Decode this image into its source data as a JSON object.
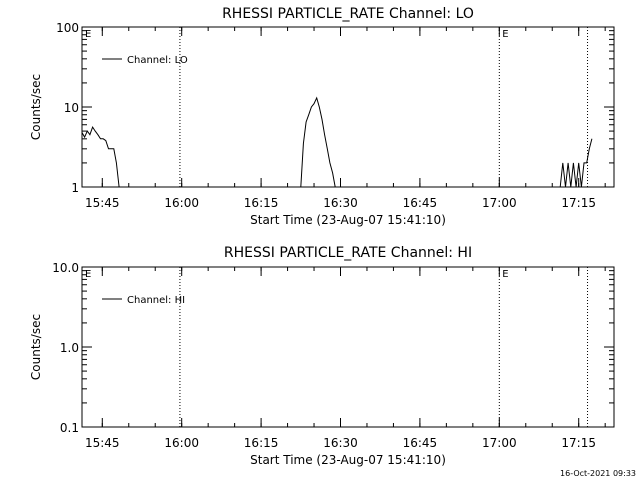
{
  "footer": {
    "timestamp": "16-Oct-2021 09:33"
  },
  "chart_data": [
    {
      "type": "line",
      "title": "RHESSI PARTICLE_RATE Channel: LO",
      "xlabel": "Start Time (23-Aug-07 15:41:10)",
      "ylabel": "Counts/sec",
      "yscale": "log",
      "ylim": [
        1,
        100
      ],
      "yticks": [
        "1",
        "10",
        "100"
      ],
      "xlim": [
        "15:41:10",
        "17:21:40"
      ],
      "xticks": [
        "15:45",
        "16:00",
        "16:15",
        "16:30",
        "16:45",
        "17:00",
        "17:15"
      ],
      "legend": {
        "label": "Channel: LO",
        "position": "top-left"
      },
      "markers": [
        {
          "label": "E",
          "time": "15:41:10",
          "style": "none"
        },
        {
          "time": "15:59:40",
          "style": "dotted"
        },
        {
          "label": "E",
          "time": "17:00:00",
          "style": "dotted"
        },
        {
          "time": "17:16:40",
          "style": "dotted"
        }
      ],
      "series": [
        {
          "name": "Channel: LO",
          "segments": [
            {
              "x": [
                "15:41:10",
                "15:41:40",
                "15:42:10",
                "15:42:40",
                "15:43:10",
                "15:43:40",
                "15:44:10",
                "15:44:40",
                "15:45:10",
                "15:45:40",
                "15:46:10",
                "15:46:40",
                "15:47:10",
                "15:47:40",
                "15:48:10"
              ],
              "y": [
                4.8,
                4.2,
                5.0,
                4.5,
                5.6,
                5.0,
                4.5,
                4.0,
                4.0,
                3.8,
                3.0,
                3.0,
                3.0,
                2.0,
                1.0
              ]
            },
            {
              "x": [
                "16:22:30",
                "16:23:00",
                "16:23:30",
                "16:24:00",
                "16:24:30",
                "16:25:00",
                "16:25:30",
                "16:26:00",
                "16:26:30",
                "16:27:00",
                "16:27:30",
                "16:28:00",
                "16:28:30",
                "16:29:00"
              ],
              "y": [
                1.0,
                3.5,
                6.5,
                8.0,
                10.0,
                11.0,
                13.0,
                10.0,
                7.0,
                4.5,
                3.0,
                2.0,
                1.5,
                1.0
              ]
            },
            {
              "x": [
                "17:11:30",
                "17:12:00",
                "17:12:30",
                "17:13:00",
                "17:13:30",
                "17:14:00",
                "17:14:30",
                "17:15:00",
                "17:15:30",
                "17:16:00",
                "17:16:30",
                "17:17:00",
                "17:17:30"
              ],
              "y": [
                1.0,
                2.0,
                1.0,
                2.0,
                1.0,
                2.0,
                1.0,
                2.0,
                1.0,
                2.0,
                2.0,
                3.0,
                4.0
              ]
            }
          ]
        }
      ]
    },
    {
      "type": "line",
      "title": "RHESSI PARTICLE_RATE Channel: HI",
      "xlabel": "Start Time (23-Aug-07 15:41:10)",
      "ylabel": "Counts/sec",
      "yscale": "log",
      "ylim": [
        0.1,
        10.0
      ],
      "yticks": [
        "0.1",
        "1.0",
        "10.0"
      ],
      "xlim": [
        "15:41:10",
        "17:21:40"
      ],
      "xticks": [
        "15:45",
        "16:00",
        "16:15",
        "16:30",
        "16:45",
        "17:00",
        "17:15"
      ],
      "legend": {
        "label": "Channel: HI",
        "position": "top-left"
      },
      "markers": [
        {
          "label": "E",
          "time": "15:41:10",
          "style": "none"
        },
        {
          "time": "15:59:40",
          "style": "dotted"
        },
        {
          "label": "E",
          "time": "17:00:00",
          "style": "dotted"
        },
        {
          "time": "17:16:40",
          "style": "dotted"
        }
      ],
      "series": [
        {
          "name": "Channel: HI",
          "segments": []
        }
      ]
    }
  ]
}
